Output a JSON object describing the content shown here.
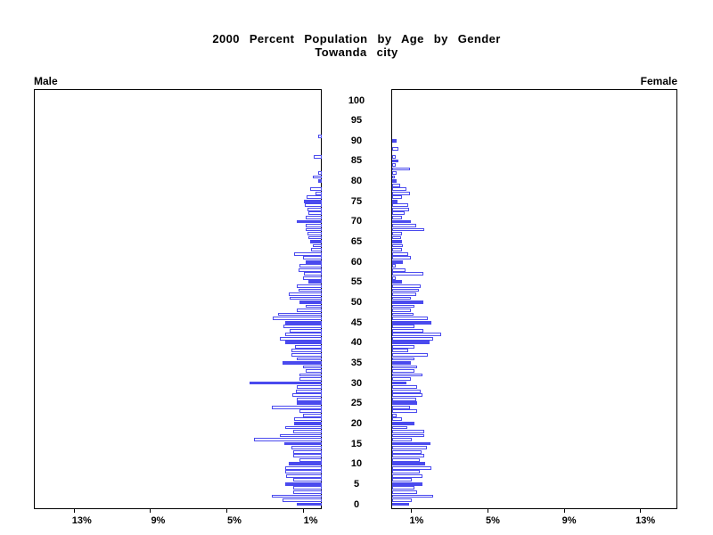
{
  "title": {
    "line1": "2000 Percent Population by Age by Gender",
    "line2": "Towanda city"
  },
  "panel_labels": {
    "left": "Male",
    "right": "Female"
  },
  "axis": {
    "left_tick_labels": [
      "13%",
      "9%",
      "5%",
      "1%"
    ],
    "right_tick_labels": [
      "1%",
      "5%",
      "9%",
      "13%"
    ],
    "tick_values_percent": [
      1,
      5,
      9,
      13
    ],
    "age_tick_labels": [
      "0",
      "5",
      "10",
      "15",
      "20",
      "25",
      "30",
      "35",
      "40",
      "45",
      "50",
      "55",
      "60",
      "65",
      "70",
      "75",
      "80",
      "85",
      "90",
      "95",
      "100"
    ]
  },
  "colors": {
    "bar_blue": "#4a4aee",
    "bar_white_fill": "#ffffff",
    "axis_black": "#000000"
  },
  "chart_data": {
    "type": "bar",
    "variant": "population-pyramid-single-year-of-age",
    "title": "2000 Percent Population by Age by Gender",
    "subtitle": "Towanda city",
    "xlim_percent": [
      0,
      15
    ],
    "x_ticks_percent": [
      1,
      5,
      9,
      13
    ],
    "age_range": [
      0,
      100
    ],
    "age_tick_step": 5,
    "legend": "ages divisible by 5 drawn as solid blue bars; other ages white bars with blue outline",
    "series": [
      {
        "name": "Male",
        "side": "left",
        "values_percent_by_age": [
          1.3,
          2.05,
          2.6,
          1.5,
          1.5,
          1.9,
          1.5,
          1.85,
          1.9,
          1.9,
          1.75,
          1.15,
          1.5,
          1.5,
          1.6,
          1.95,
          3.55,
          2.2,
          1.5,
          1.9,
          1.45,
          1.45,
          1.0,
          1.15,
          2.6,
          1.3,
          1.3,
          1.55,
          1.35,
          1.3,
          3.8,
          1.15,
          1.15,
          0.85,
          1.0,
          2.05,
          1.3,
          1.6,
          1.6,
          1.4,
          1.9,
          2.2,
          1.9,
          1.7,
          2.0,
          1.9,
          2.55,
          2.3,
          1.3,
          0.85,
          1.15,
          1.7,
          1.75,
          1.2,
          1.3,
          0.7,
          1.0,
          0.95,
          1.2,
          1.15,
          0.85,
          1.0,
          1.45,
          0.55,
          0.45,
          0.6,
          0.7,
          0.75,
          0.85,
          0.85,
          1.3,
          0.85,
          0.7,
          0.75,
          0.9,
          0.95,
          0.8,
          0.35,
          0.6,
          0.0,
          0.2,
          0.45,
          0.2,
          0.0,
          0.0,
          0.0,
          0.4,
          0.0,
          0.0,
          0.0,
          0.0,
          0.2,
          0.0,
          0.0,
          0.0,
          0.0,
          0.0,
          0.0,
          0.0,
          0.0,
          0.0
        ]
      },
      {
        "name": "Female",
        "side": "right",
        "values_percent_by_age": [
          0.9,
          1.05,
          2.15,
          1.3,
          1.15,
          1.6,
          1.05,
          1.6,
          1.45,
          2.05,
          1.75,
          1.45,
          1.7,
          1.55,
          1.8,
          2.0,
          1.05,
          1.7,
          1.7,
          0.8,
          1.15,
          0.5,
          0.25,
          1.3,
          0.95,
          1.3,
          1.25,
          1.6,
          1.5,
          1.3,
          0.75,
          1.0,
          1.6,
          1.15,
          1.3,
          1.0,
          1.15,
          1.85,
          0.85,
          1.15,
          1.95,
          2.15,
          2.55,
          1.65,
          1.15,
          2.05,
          1.85,
          1.1,
          1.0,
          1.15,
          1.65,
          1.0,
          1.25,
          1.4,
          1.5,
          0.5,
          0.2,
          1.65,
          0.7,
          0.2,
          0.55,
          1.0,
          0.85,
          0.5,
          0.55,
          0.5,
          0.45,
          0.5,
          1.7,
          1.25,
          1.0,
          0.5,
          0.65,
          0.9,
          0.85,
          0.3,
          0.5,
          0.95,
          0.75,
          0.4,
          0.25,
          0.15,
          0.25,
          0.95,
          0.2,
          0.35,
          0.2,
          0.0,
          0.35,
          0.0,
          0.25,
          0.0,
          0.0,
          0.0,
          0.0,
          0.0,
          0.0,
          0.0,
          0.0,
          0.0,
          0.0
        ]
      }
    ]
  }
}
